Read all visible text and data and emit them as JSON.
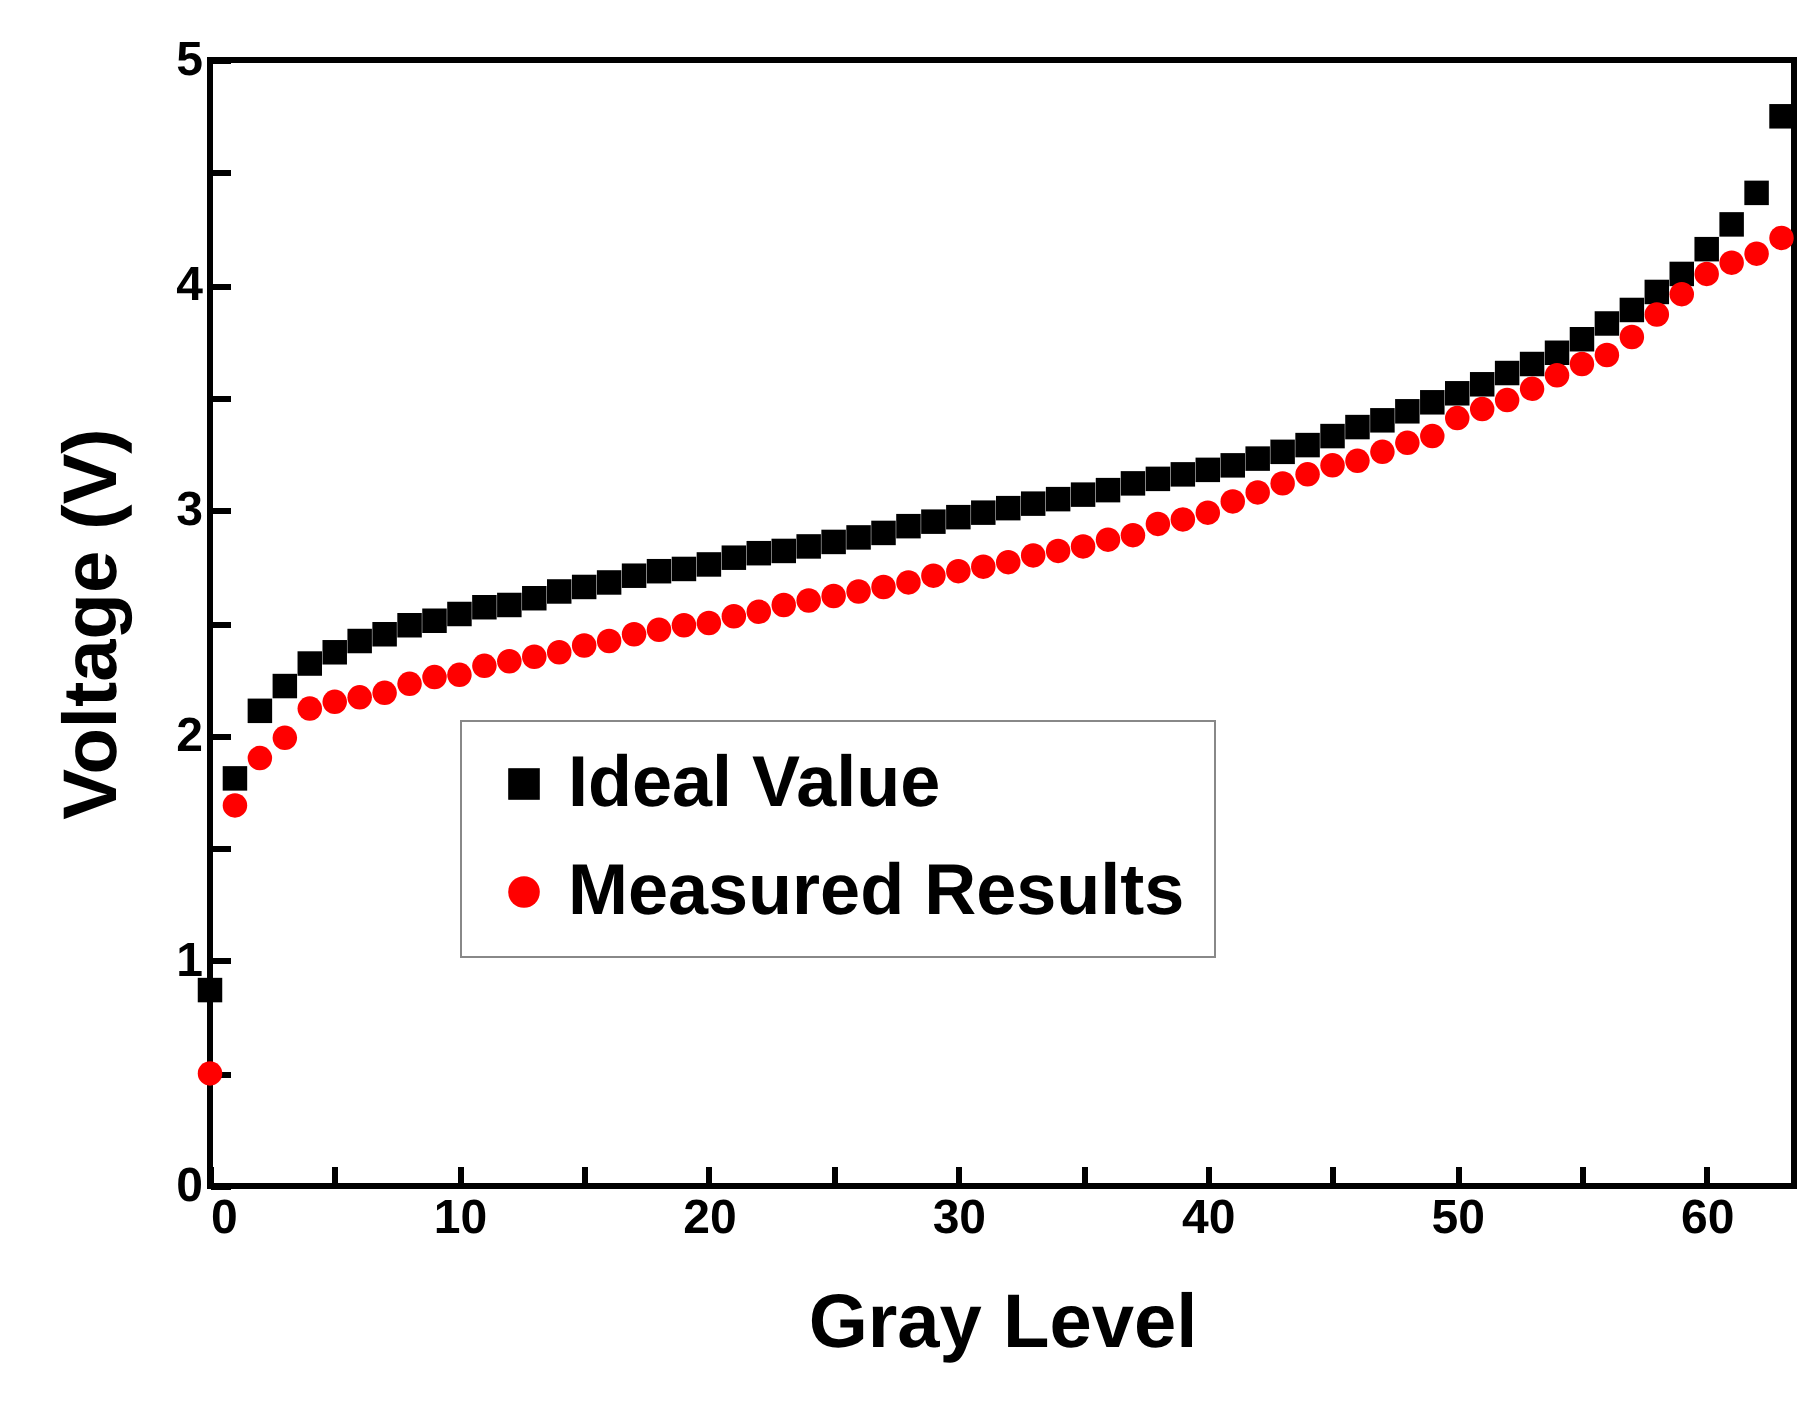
{
  "chart_data": {
    "type": "scatter",
    "xlabel": "Gray Level",
    "ylabel": "Voltage (V)",
    "x": [
      0,
      1,
      2,
      3,
      4,
      5,
      6,
      7,
      8,
      9,
      10,
      11,
      12,
      13,
      14,
      15,
      16,
      17,
      18,
      19,
      20,
      21,
      22,
      23,
      24,
      25,
      26,
      27,
      28,
      29,
      30,
      31,
      32,
      33,
      34,
      35,
      36,
      37,
      38,
      39,
      40,
      41,
      42,
      43,
      44,
      45,
      46,
      47,
      48,
      49,
      50,
      51,
      52,
      53,
      54,
      55,
      56,
      57,
      58,
      59,
      60,
      61,
      62,
      63
    ],
    "series": [
      {
        "name": "Ideal Value",
        "color": "#000000",
        "marker": "square",
        "values": [
          0.87,
          1.81,
          2.11,
          2.22,
          2.32,
          2.37,
          2.42,
          2.45,
          2.49,
          2.51,
          2.54,
          2.57,
          2.58,
          2.61,
          2.64,
          2.66,
          2.68,
          2.71,
          2.73,
          2.74,
          2.76,
          2.79,
          2.81,
          2.82,
          2.84,
          2.86,
          2.88,
          2.9,
          2.93,
          2.95,
          2.97,
          2.99,
          3.01,
          3.03,
          3.05,
          3.07,
          3.09,
          3.12,
          3.14,
          3.16,
          3.18,
          3.2,
          3.23,
          3.26,
          3.29,
          3.33,
          3.37,
          3.4,
          3.44,
          3.48,
          3.52,
          3.56,
          3.61,
          3.65,
          3.7,
          3.76,
          3.83,
          3.89,
          3.97,
          4.05,
          4.16,
          4.27,
          4.41,
          4.75
        ]
      },
      {
        "name": "Measured Results",
        "color": "#ff0000",
        "marker": "circle",
        "values": [
          0.5,
          1.69,
          1.9,
          1.99,
          2.12,
          2.15,
          2.17,
          2.19,
          2.23,
          2.26,
          2.27,
          2.31,
          2.33,
          2.35,
          2.37,
          2.4,
          2.42,
          2.45,
          2.47,
          2.49,
          2.5,
          2.53,
          2.55,
          2.58,
          2.6,
          2.62,
          2.64,
          2.66,
          2.68,
          2.71,
          2.73,
          2.75,
          2.77,
          2.8,
          2.82,
          2.84,
          2.87,
          2.89,
          2.94,
          2.96,
          2.99,
          3.04,
          3.08,
          3.12,
          3.16,
          3.2,
          3.22,
          3.26,
          3.3,
          3.33,
          3.41,
          3.45,
          3.49,
          3.54,
          3.6,
          3.65,
          3.69,
          3.77,
          3.87,
          3.96,
          4.05,
          4.1,
          4.14,
          4.21
        ]
      }
    ],
    "xlim": [
      0,
      63.5
    ],
    "xticks": [
      0,
      {
        "value": 5,
        "label": null
      },
      10,
      {
        "value": 15,
        "label": null
      },
      20,
      {
        "value": 25,
        "label": null
      },
      30,
      {
        "value": 35,
        "label": null
      },
      40,
      {
        "value": 45,
        "label": null
      },
      50,
      {
        "value": 55,
        "label": null
      },
      60
    ],
    "ylim": [
      0,
      5
    ],
    "yticks": [
      0,
      {
        "value": 0.5,
        "label": null
      },
      1,
      {
        "value": 1.5,
        "label": null
      },
      2,
      {
        "value": 2.5,
        "label": null
      },
      3,
      {
        "value": 3.5,
        "label": null
      },
      4,
      {
        "value": 4.5,
        "label": null
      },
      5
    ],
    "legend": "center",
    "grid": false
  }
}
